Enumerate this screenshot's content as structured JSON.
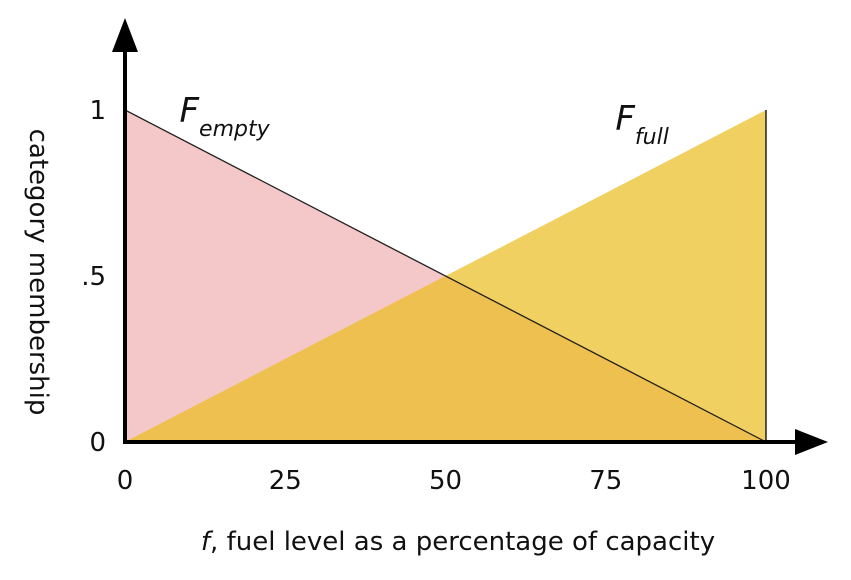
{
  "chart_data": {
    "type": "area",
    "xlabel_italic_prefix": "f",
    "xlabel_rest": ", fuel level as a percentage of capacity",
    "ylabel": "category membership",
    "xlim": [
      0,
      100
    ],
    "ylim": [
      0,
      1
    ],
    "x_ticks": [
      0,
      25,
      50,
      75,
      100
    ],
    "x_tick_labels": [
      "0",
      "25",
      "50",
      "75",
      "100"
    ],
    "y_ticks": [
      0,
      0.5,
      1
    ],
    "y_tick_labels": [
      "0",
      ".5",
      "1"
    ],
    "grid": false,
    "series": [
      {
        "label_main": "F",
        "label_sub": "empty",
        "color": "#f4c8c8",
        "points": [
          [
            0,
            0
          ],
          [
            0,
            1
          ],
          [
            100,
            0
          ]
        ]
      },
      {
        "label_main": "F",
        "label_sub": "full",
        "color": "#f0d060",
        "points": [
          [
            0,
            0
          ],
          [
            100,
            1
          ],
          [
            100,
            0
          ]
        ]
      }
    ],
    "overlap_color": "#eec050"
  }
}
